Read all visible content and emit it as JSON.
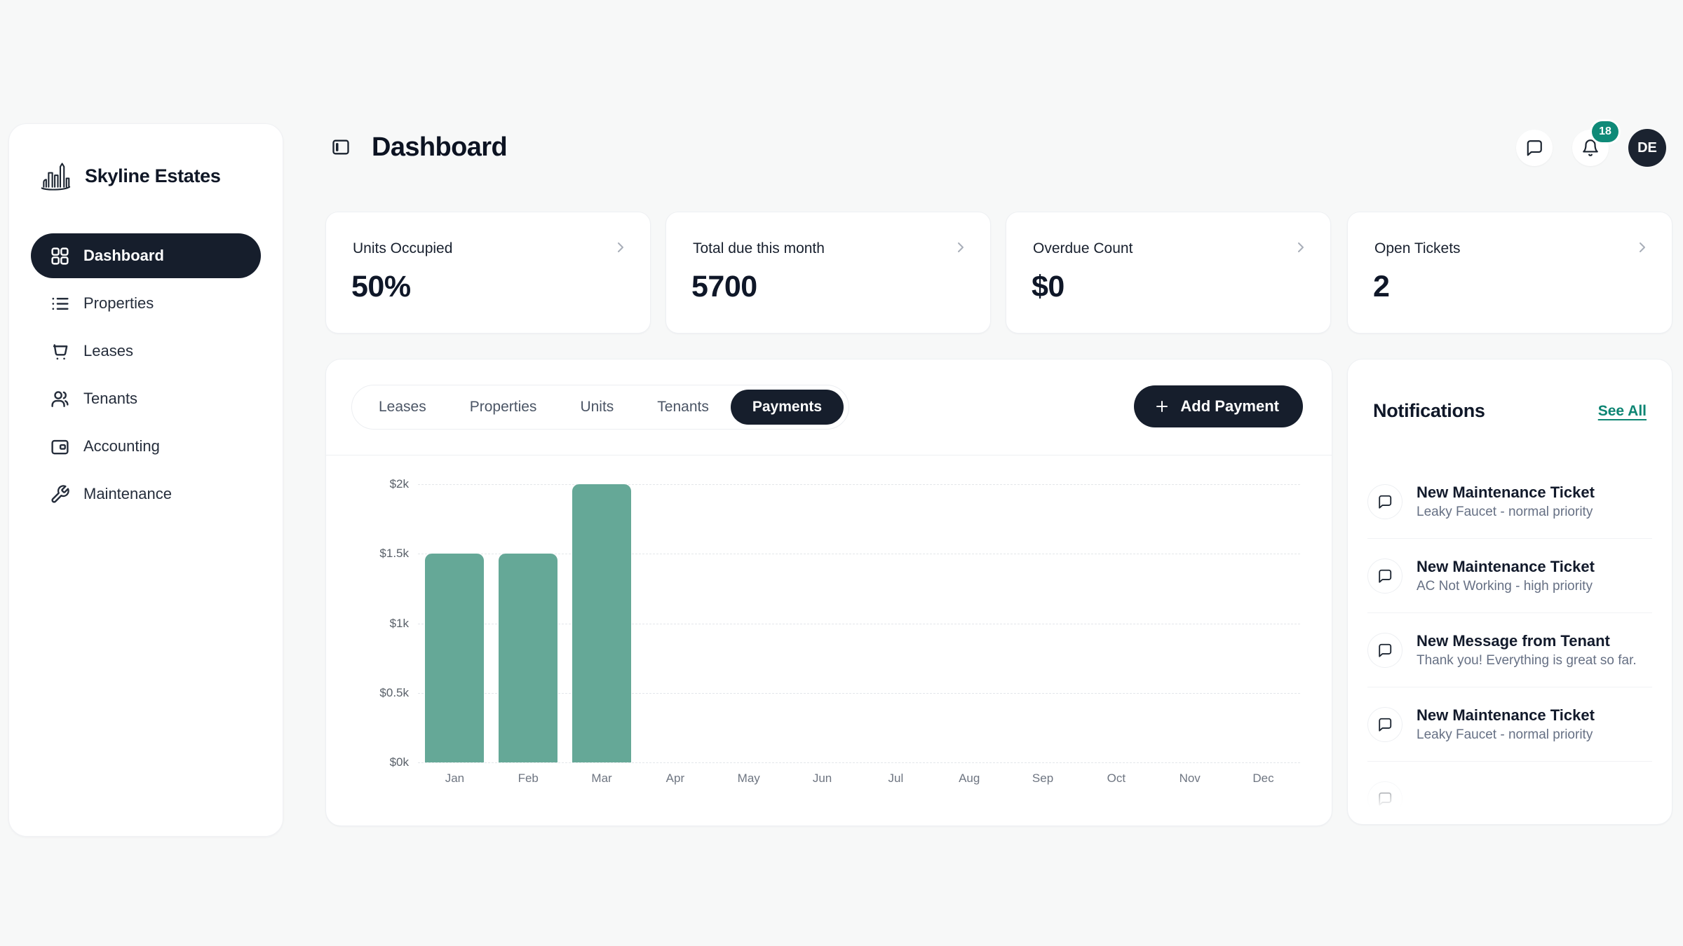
{
  "brand": {
    "name": "Skyline Estates"
  },
  "sidebar": {
    "items": [
      {
        "label": "Dashboard",
        "icon": "grid",
        "active": true
      },
      {
        "label": "Properties",
        "icon": "list",
        "active": false
      },
      {
        "label": "Leases",
        "icon": "cart",
        "active": false
      },
      {
        "label": "Tenants",
        "icon": "users",
        "active": false
      },
      {
        "label": "Accounting",
        "icon": "wallet",
        "active": false
      },
      {
        "label": "Maintenance",
        "icon": "wrench",
        "active": false
      }
    ]
  },
  "header": {
    "title": "Dashboard",
    "notification_badge": "18",
    "avatar_initials": "DE"
  },
  "stat_cards": [
    {
      "label": "Units Occupied",
      "value": "50%"
    },
    {
      "label": "Total due this month",
      "value": "5700"
    },
    {
      "label": "Overdue Count",
      "value": "$0"
    },
    {
      "label": "Open Tickets",
      "value": "2"
    }
  ],
  "tabs": {
    "items": [
      {
        "label": "Leases",
        "active": false
      },
      {
        "label": "Properties",
        "active": false
      },
      {
        "label": "Units",
        "active": false
      },
      {
        "label": "Tenants",
        "active": false
      },
      {
        "label": "Payments",
        "active": true
      }
    ],
    "add_button": "Add Payment"
  },
  "chart_data": {
    "type": "bar",
    "categories": [
      "Jan",
      "Feb",
      "Mar",
      "Apr",
      "May",
      "Jun",
      "Jul",
      "Aug",
      "Sep",
      "Oct",
      "Nov",
      "Dec"
    ],
    "values": [
      1500,
      1500,
      2000,
      0,
      0,
      0,
      0,
      0,
      0,
      0,
      0,
      0
    ],
    "title": "",
    "xlabel": "",
    "ylabel": "",
    "ylim": [
      0,
      2000
    ],
    "yticks": [
      {
        "value": 0,
        "label": "$0k"
      },
      {
        "value": 500,
        "label": "$0.5k"
      },
      {
        "value": 1000,
        "label": "$1k"
      },
      {
        "value": 1500,
        "label": "$1.5k"
      },
      {
        "value": 2000,
        "label": "$2k"
      }
    ],
    "grid": "horizontal-dashed",
    "legend": "none",
    "bar_color": "#65a897"
  },
  "notifications": {
    "title": "Notifications",
    "see_all": "See All",
    "items": [
      {
        "title": "New Maintenance Ticket",
        "subtitle": "Leaky Faucet - normal priority"
      },
      {
        "title": "New Maintenance Ticket",
        "subtitle": "AC Not Working - high priority"
      },
      {
        "title": "New Message from Tenant",
        "subtitle": "Thank you! Everything is great so far."
      },
      {
        "title": "New Maintenance Ticket",
        "subtitle": "Leaky Faucet - normal priority"
      }
    ],
    "partial_item_visible": true
  },
  "colors": {
    "accent_teal": "#0d8573",
    "badge_teal": "#0f8a78",
    "dark_navy": "#161e2c",
    "bar_teal": "#65a897",
    "page_background": "#f7f8f8"
  }
}
